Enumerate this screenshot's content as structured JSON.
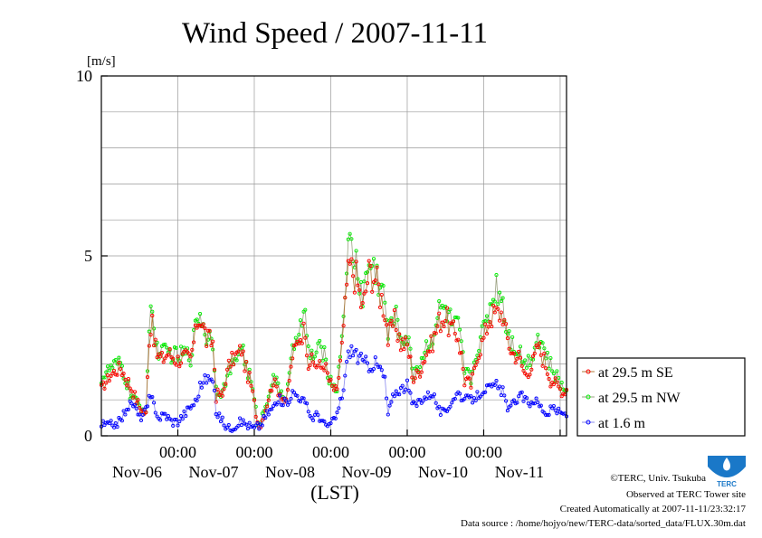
{
  "title": "Wind Speed / 2007-11-11",
  "y_unit": "[m/s]",
  "x_axis_label": "(LST)",
  "footer": {
    "copyright": "©TERC, Univ. Tsukuba",
    "observed": "Observed at TERC Tower site",
    "created": "Created Automatically at 2007-11-11/23:32:17",
    "source": "Data source : /home/hojyo/new/TERC-data/sorted_data/FLUX.30m.dat"
  },
  "logo": {
    "text": "TERC",
    "color": "#1a78c8"
  },
  "chart_data": {
    "type": "line",
    "title": "Wind Speed / 2007-11-11",
    "ylabel": "[m/s]",
    "xlabel": "(LST)",
    "ylim": [
      0,
      10
    ],
    "yticks": [
      0,
      5,
      10
    ],
    "x_domain_hours": [
      0,
      146
    ],
    "x_ticks": [
      {
        "hour": 24,
        "time": "00:00",
        "date": "Nov-06"
      },
      {
        "hour": 48,
        "time": "00:00",
        "date": "Nov-07"
      },
      {
        "hour": 72,
        "time": "00:00",
        "date": "Nov-08"
      },
      {
        "hour": 96,
        "time": "00:00",
        "date": "Nov-09"
      },
      {
        "hour": 120,
        "time": "00:00",
        "date": "Nov-10"
      },
      {
        "hour": 144,
        "time": "",
        "date": "Nov-11"
      }
    ],
    "grid": true,
    "legend_position": "right",
    "series": [
      {
        "name": "at 29.5 m SE",
        "color": "#ff0000",
        "line_color": "#b07838",
        "anchors": [
          [
            0,
            1.3
          ],
          [
            3,
            1.7
          ],
          [
            6,
            1.9
          ],
          [
            9,
            1.4
          ],
          [
            12,
            0.8
          ],
          [
            14,
            0.6
          ],
          [
            15,
            2.6
          ],
          [
            16,
            3.4
          ],
          [
            17,
            2.3
          ],
          [
            19,
            2.1
          ],
          [
            21,
            2.3
          ],
          [
            24,
            2.1
          ],
          [
            26,
            2.2
          ],
          [
            28,
            2.1
          ],
          [
            30,
            3.1
          ],
          [
            31,
            3.3
          ],
          [
            33,
            2.7
          ],
          [
            35,
            2.6
          ],
          [
            36,
            1.2
          ],
          [
            38,
            1.1
          ],
          [
            40,
            2.0
          ],
          [
            42,
            2.2
          ],
          [
            44,
            2.4
          ],
          [
            45,
            2.0
          ],
          [
            47,
            1.4
          ],
          [
            49,
            0.4
          ],
          [
            50,
            0.3
          ],
          [
            52,
            0.9
          ],
          [
            54,
            1.5
          ],
          [
            56,
            1.2
          ],
          [
            58,
            0.9
          ],
          [
            60,
            2.2
          ],
          [
            62,
            2.7
          ],
          [
            64,
            3.0
          ],
          [
            65,
            2.1
          ],
          [
            67,
            2.0
          ],
          [
            69,
            1.9
          ],
          [
            70,
            2.0
          ],
          [
            72,
            1.4
          ],
          [
            74,
            1.2
          ],
          [
            76,
            3.0
          ],
          [
            77,
            4.2
          ],
          [
            78,
            4.7
          ],
          [
            80,
            4.4
          ],
          [
            82,
            3.5
          ],
          [
            84,
            4.6
          ],
          [
            86,
            4.4
          ],
          [
            88,
            3.8
          ],
          [
            89,
            3.5
          ],
          [
            90,
            2.7
          ],
          [
            92,
            3.2
          ],
          [
            94,
            2.6
          ],
          [
            96,
            2.5
          ],
          [
            98,
            1.6
          ],
          [
            100,
            1.8
          ],
          [
            102,
            2.3
          ],
          [
            104,
            2.6
          ],
          [
            106,
            3.2
          ],
          [
            108,
            3.3
          ],
          [
            110,
            2.9
          ],
          [
            112,
            2.8
          ],
          [
            114,
            1.6
          ],
          [
            116,
            1.4
          ],
          [
            118,
            2.2
          ],
          [
            120,
            2.7
          ],
          [
            122,
            3.3
          ],
          [
            124,
            3.4
          ],
          [
            126,
            3.4
          ],
          [
            127,
            2.8
          ],
          [
            129,
            2.3
          ],
          [
            131,
            2.2
          ],
          [
            133,
            1.7
          ],
          [
            135,
            1.9
          ],
          [
            137,
            2.5
          ],
          [
            139,
            2.1
          ],
          [
            141,
            1.6
          ],
          [
            143,
            1.4
          ],
          [
            145,
            1.2
          ],
          [
            146,
            1.3
          ]
        ]
      },
      {
        "name": "at 29.5 m NW",
        "color": "#00ee00",
        "line_color": "#9aa080",
        "anchors": [
          [
            0,
            1.6
          ],
          [
            3,
            1.9
          ],
          [
            6,
            2.0
          ],
          [
            9,
            1.2
          ],
          [
            12,
            0.8
          ],
          [
            14,
            0.7
          ],
          [
            15,
            2.9
          ],
          [
            16,
            3.7
          ],
          [
            17,
            2.5
          ],
          [
            19,
            2.3
          ],
          [
            21,
            2.3
          ],
          [
            24,
            2.2
          ],
          [
            26,
            2.3
          ],
          [
            28,
            2.2
          ],
          [
            30,
            3.3
          ],
          [
            31,
            3.4
          ],
          [
            33,
            2.8
          ],
          [
            35,
            2.7
          ],
          [
            36,
            1.3
          ],
          [
            38,
            1.2
          ],
          [
            40,
            1.8
          ],
          [
            42,
            2.0
          ],
          [
            44,
            2.6
          ],
          [
            45,
            2.1
          ],
          [
            47,
            1.5
          ],
          [
            49,
            0.4
          ],
          [
            50,
            0.4
          ],
          [
            52,
            1.0
          ],
          [
            54,
            1.6
          ],
          [
            56,
            1.3
          ],
          [
            58,
            1.0
          ],
          [
            60,
            2.4
          ],
          [
            62,
            3.0
          ],
          [
            64,
            3.3
          ],
          [
            65,
            2.3
          ],
          [
            67,
            2.2
          ],
          [
            69,
            2.5
          ],
          [
            70,
            2.2
          ],
          [
            72,
            1.5
          ],
          [
            74,
            1.3
          ],
          [
            76,
            3.3
          ],
          [
            77,
            4.8
          ],
          [
            78,
            5.3
          ],
          [
            80,
            4.8
          ],
          [
            82,
            3.9
          ],
          [
            84,
            4.8
          ],
          [
            86,
            4.6
          ],
          [
            88,
            4.1
          ],
          [
            89,
            3.7
          ],
          [
            90,
            2.8
          ],
          [
            92,
            3.4
          ],
          [
            94,
            2.8
          ],
          [
            96,
            2.7
          ],
          [
            98,
            1.8
          ],
          [
            100,
            2.0
          ],
          [
            102,
            2.5
          ],
          [
            104,
            2.8
          ],
          [
            106,
            3.5
          ],
          [
            108,
            3.5
          ],
          [
            110,
            3.1
          ],
          [
            112,
            3.0
          ],
          [
            114,
            1.8
          ],
          [
            116,
            1.6
          ],
          [
            118,
            2.4
          ],
          [
            120,
            3.0
          ],
          [
            122,
            3.6
          ],
          [
            124,
            4.2
          ],
          [
            126,
            3.8
          ],
          [
            127,
            3.1
          ],
          [
            129,
            2.6
          ],
          [
            131,
            2.4
          ],
          [
            133,
            2.0
          ],
          [
            135,
            2.2
          ],
          [
            137,
            2.8
          ],
          [
            139,
            2.4
          ],
          [
            141,
            1.9
          ],
          [
            143,
            1.6
          ],
          [
            145,
            1.3
          ],
          [
            146,
            1.3
          ]
        ]
      },
      {
        "name": "at 1.6 m",
        "color": "#0000ff",
        "line_color": "#8888ee",
        "anchors": [
          [
            0,
            0.3
          ],
          [
            3,
            0.3
          ],
          [
            6,
            0.4
          ],
          [
            8,
            0.8
          ],
          [
            10,
            0.9
          ],
          [
            12,
            0.5
          ],
          [
            14,
            0.7
          ],
          [
            15,
            1.0
          ],
          [
            16,
            1.0
          ],
          [
            18,
            0.5
          ],
          [
            20,
            0.6
          ],
          [
            22,
            0.4
          ],
          [
            24,
            0.4
          ],
          [
            26,
            0.6
          ],
          [
            28,
            0.8
          ],
          [
            30,
            1.0
          ],
          [
            31,
            1.4
          ],
          [
            33,
            1.6
          ],
          [
            35,
            1.5
          ],
          [
            36,
            0.7
          ],
          [
            38,
            0.4
          ],
          [
            40,
            0.2
          ],
          [
            42,
            0.3
          ],
          [
            44,
            0.4
          ],
          [
            46,
            0.3
          ],
          [
            48,
            0.2
          ],
          [
            50,
            0.3
          ],
          [
            52,
            0.6
          ],
          [
            54,
            0.8
          ],
          [
            56,
            1.0
          ],
          [
            58,
            0.9
          ],
          [
            60,
            1.2
          ],
          [
            62,
            1.1
          ],
          [
            64,
            0.9
          ],
          [
            66,
            0.5
          ],
          [
            68,
            0.6
          ],
          [
            70,
            0.3
          ],
          [
            72,
            0.3
          ],
          [
            74,
            0.6
          ],
          [
            76,
            1.3
          ],
          [
            77,
            2.0
          ],
          [
            78,
            2.4
          ],
          [
            80,
            2.3
          ],
          [
            82,
            2.0
          ],
          [
            84,
            2.0
          ],
          [
            86,
            2.0
          ],
          [
            88,
            1.8
          ],
          [
            89,
            1.5
          ],
          [
            90,
            0.6
          ],
          [
            92,
            1.2
          ],
          [
            94,
            1.3
          ],
          [
            96,
            1.4
          ],
          [
            98,
            0.8
          ],
          [
            100,
            1.0
          ],
          [
            102,
            1.1
          ],
          [
            104,
            1.2
          ],
          [
            106,
            0.7
          ],
          [
            108,
            0.6
          ],
          [
            110,
            1.0
          ],
          [
            112,
            1.2
          ],
          [
            114,
            1.0
          ],
          [
            116,
            1.0
          ],
          [
            118,
            1.1
          ],
          [
            120,
            1.3
          ],
          [
            122,
            1.3
          ],
          [
            124,
            1.4
          ],
          [
            126,
            1.2
          ],
          [
            128,
            0.7
          ],
          [
            130,
            1.0
          ],
          [
            132,
            1.1
          ],
          [
            134,
            0.9
          ],
          [
            136,
            1.0
          ],
          [
            138,
            0.8
          ],
          [
            140,
            0.6
          ],
          [
            142,
            0.8
          ],
          [
            144,
            0.6
          ],
          [
            146,
            0.6
          ]
        ]
      }
    ]
  }
}
